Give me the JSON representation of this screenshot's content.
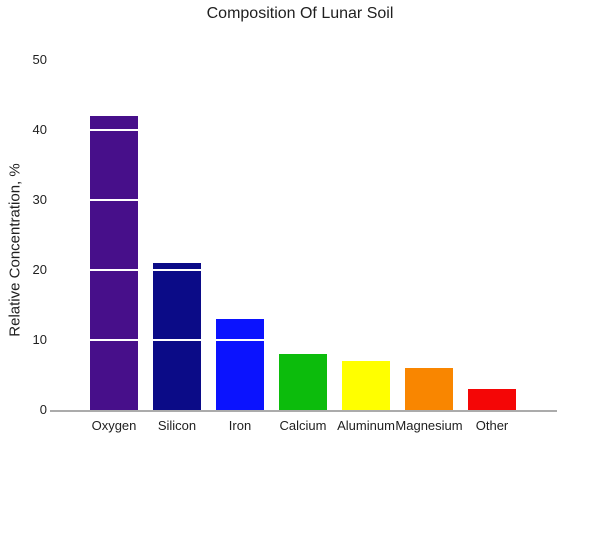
{
  "chart_data": {
    "type": "bar",
    "title": "Composition Of Lunar Soil",
    "xlabel": "",
    "ylabel": "Relative Concentration, %",
    "categories": [
      "Oxygen",
      "Silicon",
      "Iron",
      "Calcium",
      "Aluminum",
      "Magnesium",
      "Other"
    ],
    "values": [
      42,
      21,
      13,
      8,
      7,
      6,
      3
    ],
    "bar_colors": [
      "#470f8a",
      "#0b0b87",
      "#0b13fe",
      "#0cbc0c",
      "#ffff00",
      "#f98600",
      "#f40606"
    ],
    "ylim": [
      0,
      50
    ],
    "yticks": [
      0,
      10,
      20,
      30,
      40,
      50
    ],
    "grid": "horizontal-white-gridlines-over-bars",
    "legend_position": "none",
    "axis_line_color": "#ababab",
    "background_color": "#ffffff",
    "text_color": "#1f1f1f"
  }
}
